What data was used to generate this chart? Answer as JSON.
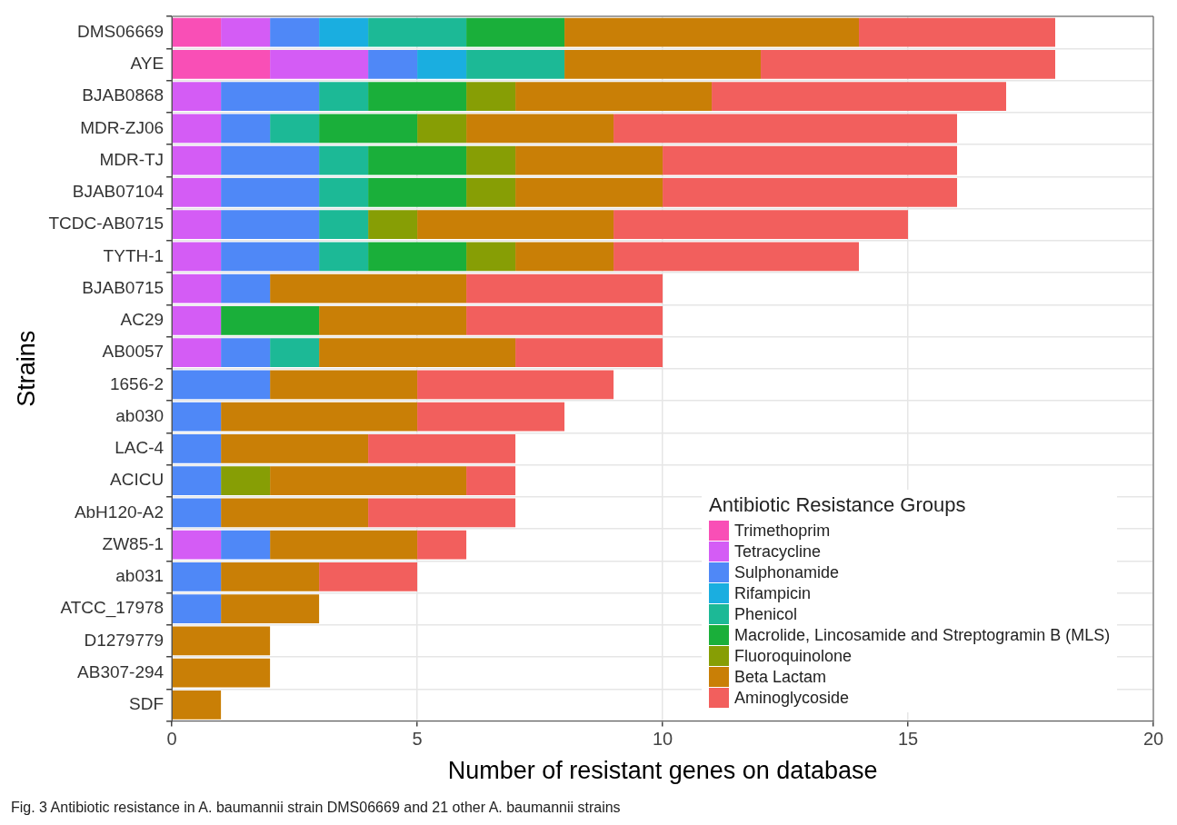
{
  "chart_data": {
    "type": "bar",
    "orientation": "horizontal",
    "stacked": true,
    "xlabel": "Number of resistant genes on database",
    "ylabel": "Strains",
    "legend_title": "Antibiotic Resistance Groups",
    "legend": "bottom right",
    "grid": true,
    "xlim": [
      0,
      20
    ],
    "xticks": [
      0,
      5,
      10,
      15,
      20
    ],
    "categories": [
      "DMS06669",
      "AYE",
      "BJAB0868",
      "MDR-ZJ06",
      "MDR-TJ",
      "BJAB07104",
      "TCDC-AB0715",
      "TYTH-1",
      "BJAB0715",
      "AC29",
      "AB0057",
      "1656-2",
      "ab030",
      "LAC-4",
      "ACICU",
      "AbH120-A2",
      "ZW85-1",
      "ab031",
      "ATCC_17978",
      "D1279779",
      "AB307-294",
      "SDF"
    ],
    "series": [
      {
        "name": "Trimethoprim",
        "color": "#f94fb6",
        "values": [
          1,
          2,
          null,
          null,
          null,
          null,
          null,
          null,
          null,
          null,
          null,
          null,
          null,
          null,
          null,
          null,
          null,
          null,
          null,
          null,
          null,
          null
        ]
      },
      {
        "name": "Tetracycline",
        "color": "#d45cf5",
        "values": [
          1,
          2,
          1,
          1,
          1,
          1,
          1,
          1,
          1,
          1,
          1,
          null,
          null,
          null,
          null,
          null,
          1,
          null,
          null,
          null,
          null,
          null
        ]
      },
      {
        "name": "Sulphonamide",
        "color": "#4f88f7",
        "values": [
          1,
          1,
          2,
          1,
          2,
          2,
          2,
          2,
          1,
          null,
          1,
          2,
          1,
          1,
          1,
          1,
          1,
          1,
          1,
          null,
          null,
          null
        ]
      },
      {
        "name": "Rifampicin",
        "color": "#1aaee0",
        "values": [
          1,
          1,
          null,
          null,
          null,
          null,
          null,
          null,
          null,
          null,
          null,
          null,
          null,
          null,
          null,
          null,
          null,
          null,
          null,
          null,
          null,
          null
        ]
      },
      {
        "name": "Phenicol",
        "color": "#1cb996",
        "values": [
          2,
          2,
          1,
          1,
          1,
          1,
          1,
          1,
          null,
          null,
          1,
          null,
          null,
          null,
          null,
          null,
          null,
          null,
          null,
          null,
          null,
          null
        ]
      },
      {
        "name": "Macrolide, Lincosamide and Streptogramin B (MLS)",
        "color": "#1aaf3a",
        "values": [
          2,
          null,
          2,
          2,
          2,
          2,
          null,
          2,
          null,
          2,
          null,
          null,
          null,
          null,
          null,
          null,
          null,
          null,
          null,
          null,
          null,
          null
        ]
      },
      {
        "name": "Fluoroquinolone",
        "color": "#879e05",
        "values": [
          null,
          null,
          1,
          1,
          1,
          1,
          1,
          1,
          null,
          null,
          null,
          null,
          null,
          null,
          1,
          null,
          null,
          null,
          null,
          null,
          null,
          null
        ]
      },
      {
        "name": "Beta Lactam",
        "color": "#c97f06",
        "values": [
          6,
          4,
          4,
          3,
          3,
          3,
          4,
          2,
          4,
          3,
          4,
          3,
          4,
          3,
          4,
          3,
          3,
          2,
          2,
          2,
          2,
          1
        ]
      },
      {
        "name": "Aminoglycoside",
        "color": "#f25f5d",
        "values": [
          4,
          6,
          6,
          7,
          6,
          6,
          6,
          5,
          4,
          4,
          3,
          4,
          3,
          3,
          1,
          3,
          1,
          2,
          null,
          null,
          null,
          null
        ]
      }
    ],
    "annotations": [
      "Fig. 3  Antibiotic resistance in A. baumannii strain DMS06669 and 21 other A. baumannii strains"
    ]
  }
}
